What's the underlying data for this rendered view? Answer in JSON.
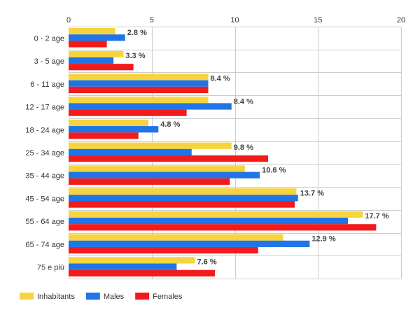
{
  "chart_data": {
    "type": "bar",
    "orientation": "horizontal",
    "categories": [
      "0 - 2 age",
      "3 - 5 age",
      "6 - 11 age",
      "12 - 17 age",
      "18 - 24 age",
      "25 - 34 age",
      "35 - 44 age",
      "45 - 54 age",
      "55 - 64 age",
      "65 - 74 age",
      "75 e più"
    ],
    "series": [
      {
        "name": "Inhabitants",
        "color": "#f7d33e",
        "values": [
          2.8,
          3.3,
          8.4,
          8.4,
          4.8,
          9.8,
          10.6,
          13.7,
          17.7,
          12.9,
          7.6
        ]
      },
      {
        "name": "Males",
        "color": "#1f74e8",
        "values": [
          3.4,
          2.7,
          8.4,
          9.8,
          5.4,
          7.4,
          11.5,
          13.8,
          16.8,
          14.5,
          6.5
        ]
      },
      {
        "name": "Females",
        "color": "#f21b1b",
        "values": [
          2.3,
          3.9,
          8.4,
          7.1,
          4.2,
          12.0,
          9.7,
          13.6,
          18.5,
          11.4,
          8.8
        ]
      }
    ],
    "data_labels": [
      "2.8 %",
      "3.3 %",
      "8.4 %",
      "8.4 %",
      "4.8 %",
      "9.8 %",
      "10.6 %",
      "13.7 %",
      "17.7 %",
      "12.9 %",
      "7.6 %"
    ],
    "xlim": [
      0,
      20
    ],
    "x_ticks": [
      0,
      5,
      10,
      15,
      20
    ],
    "x_tick_labels": [
      "0",
      "5",
      "10",
      "15",
      "20"
    ],
    "axis_position": "top",
    "grid": true,
    "legend_position": "bottom-left",
    "title": "",
    "xlabel": "",
    "ylabel": ""
  }
}
